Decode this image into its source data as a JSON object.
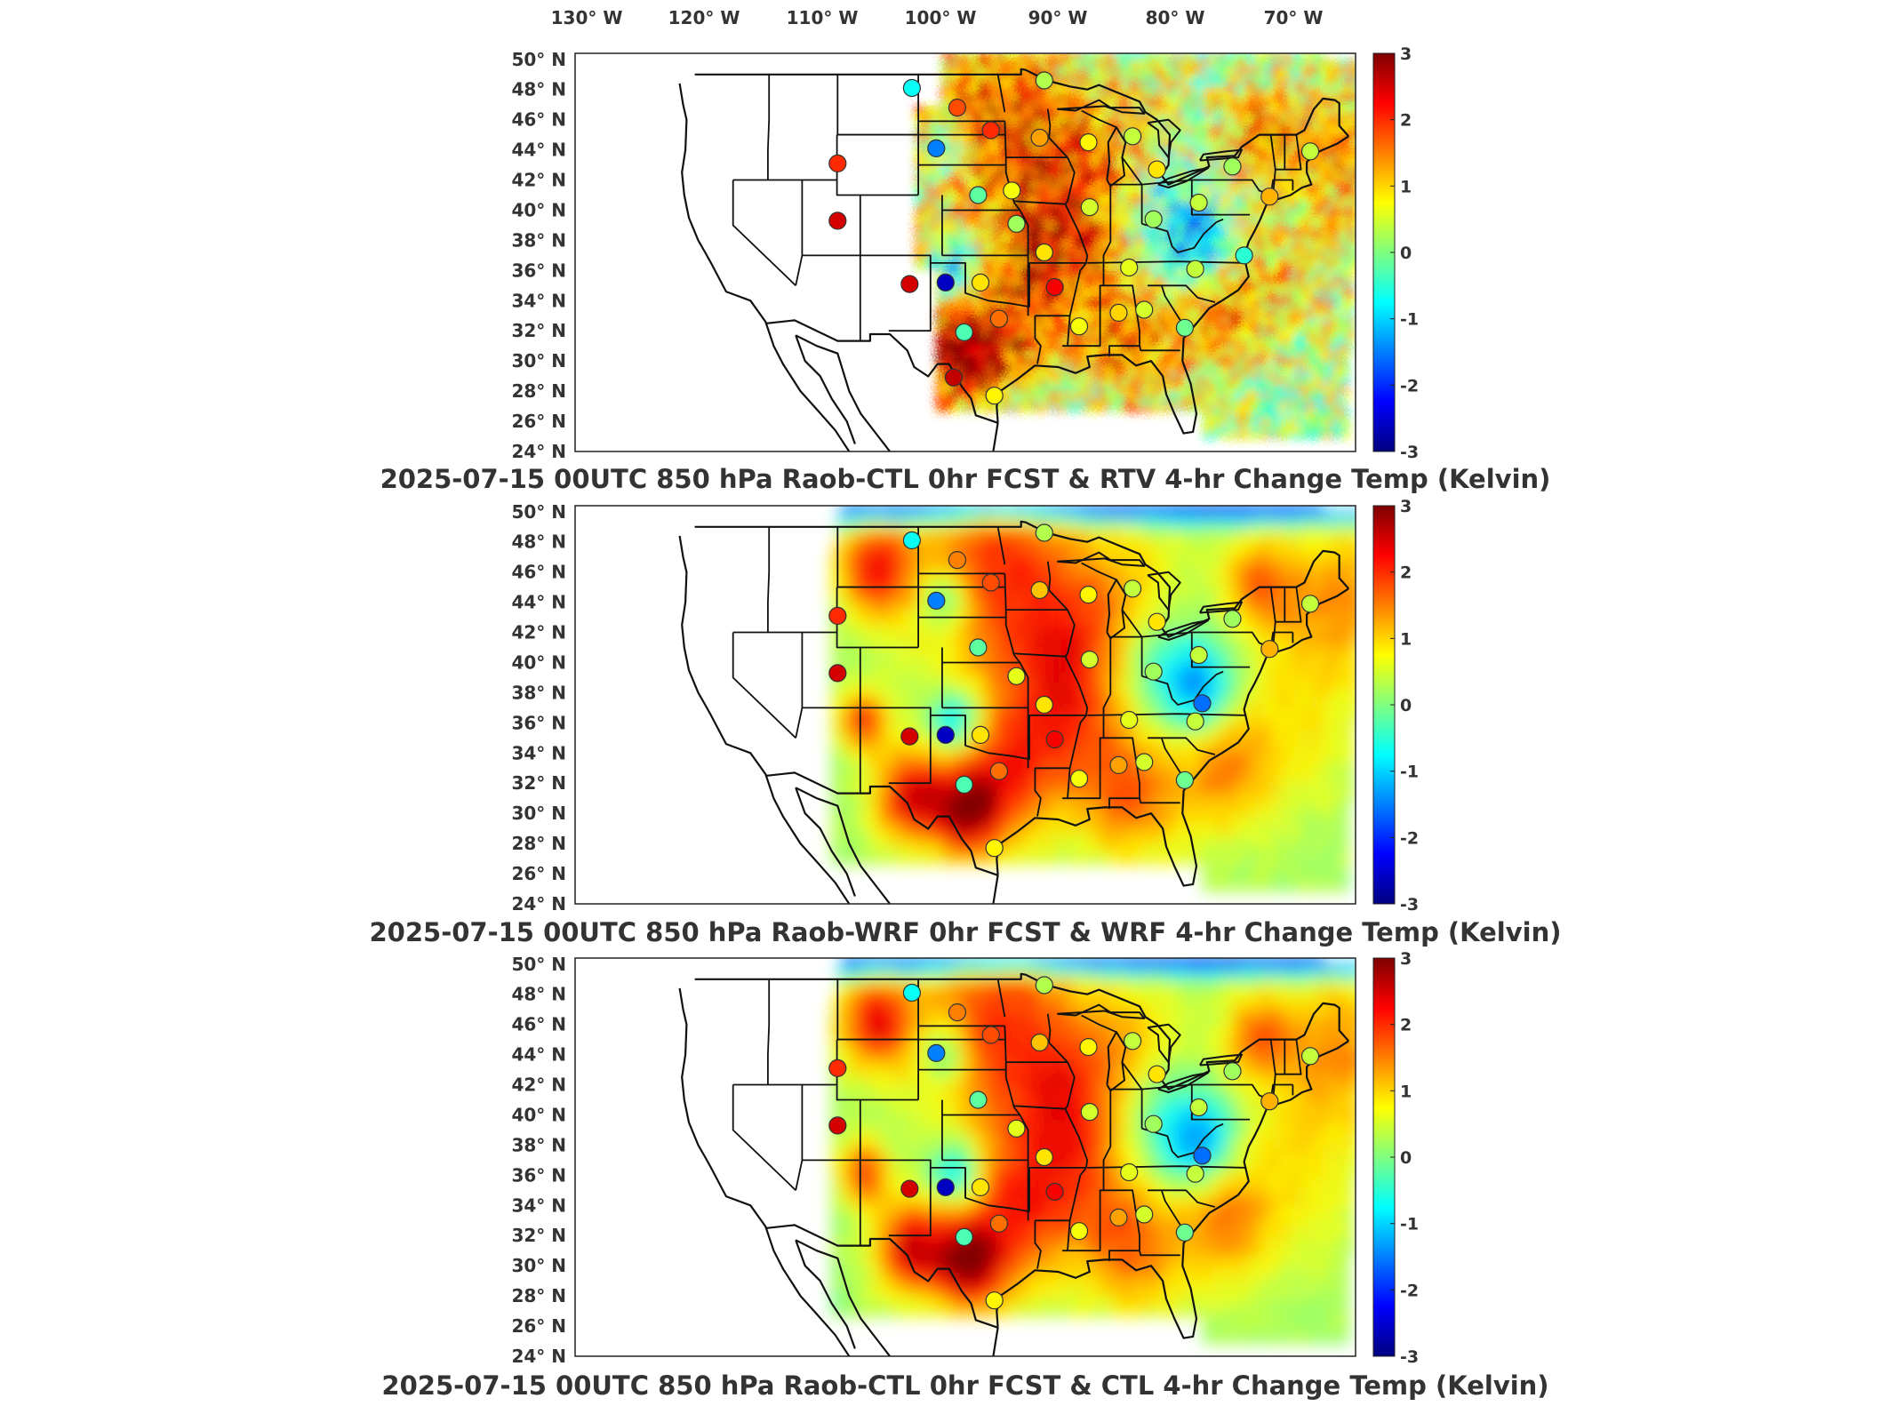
{
  "longitude_labels": [
    "130° W",
    "120° W",
    "110° W",
    "100° W",
    "90° W",
    "80° W",
    "70° W"
  ],
  "latitude_labels": [
    "50° N",
    "48° N",
    "46° N",
    "44° N",
    "42° N",
    "40° N",
    "38° N",
    "36° N",
    "34° N",
    "32° N",
    "30° N",
    "28° N",
    "26° N",
    "24° N"
  ],
  "colorbar": {
    "ticks": [
      "3",
      "2",
      "1",
      "0",
      "-1",
      "-2",
      "-3"
    ],
    "range": [
      -3,
      3
    ],
    "colors": [
      "#00007f",
      "#0000ff",
      "#007fff",
      "#00ffff",
      "#7fff7f",
      "#ffff00",
      "#ff7f00",
      "#ff0000",
      "#7f0000"
    ]
  },
  "panels": [
    {
      "title": "2025-07-15 00UTC 850 hPa Raob-CTL 0hr FCST & RTV 4-hr Change Temp (Kelvin)",
      "field": "speckled",
      "stations": [
        {
          "lon": -104.6,
          "lat": 48.1,
          "val": -0.7
        },
        {
          "lon": -100.7,
          "lat": 46.8,
          "val": 1.8
        },
        {
          "lon": -97.8,
          "lat": 45.3,
          "val": 2.0
        },
        {
          "lon": -102.5,
          "lat": 44.1,
          "val": -1.5
        },
        {
          "lon": -111.0,
          "lat": 43.1,
          "val": 2.0
        },
        {
          "lon": -111.0,
          "lat": 39.3,
          "val": 2.5
        },
        {
          "lon": -104.8,
          "lat": 35.1,
          "val": 2.5
        },
        {
          "lon": -101.7,
          "lat": 35.2,
          "val": -2.6
        },
        {
          "lon": -98.7,
          "lat": 35.2,
          "val": 0.9
        },
        {
          "lon": -92.3,
          "lat": 34.9,
          "val": 2.3
        },
        {
          "lon": -100.1,
          "lat": 31.9,
          "val": -0.3
        },
        {
          "lon": -97.1,
          "lat": 32.8,
          "val": 1.6
        },
        {
          "lon": -101.0,
          "lat": 28.9,
          "val": 2.6
        },
        {
          "lon": -97.5,
          "lat": 27.7,
          "val": 0.8
        },
        {
          "lon": -90.2,
          "lat": 32.3,
          "val": 0.7
        },
        {
          "lon": -86.8,
          "lat": 33.2,
          "val": 1.0
        },
        {
          "lon": -84.6,
          "lat": 33.4,
          "val": 0.5
        },
        {
          "lon": -81.1,
          "lat": 32.2,
          "val": -0.1
        },
        {
          "lon": -85.9,
          "lat": 36.2,
          "val": 0.6
        },
        {
          "lon": -80.2,
          "lat": 36.1,
          "val": 0.4
        },
        {
          "lon": -76.0,
          "lat": 37.0,
          "val": -0.5
        },
        {
          "lon": -83.8,
          "lat": 39.4,
          "val": 0.2
        },
        {
          "lon": -89.3,
          "lat": 40.2,
          "val": 0.5
        },
        {
          "lon": -93.2,
          "lat": 37.2,
          "val": 0.9
        },
        {
          "lon": -95.6,
          "lat": 39.1,
          "val": 0.2
        },
        {
          "lon": -98.9,
          "lat": 41.0,
          "val": -0.2
        },
        {
          "lon": -96.0,
          "lat": 41.3,
          "val": 0.7
        },
        {
          "lon": -93.6,
          "lat": 44.8,
          "val": 1.3
        },
        {
          "lon": -89.4,
          "lat": 44.5,
          "val": 0.8
        },
        {
          "lon": -85.6,
          "lat": 44.9,
          "val": 0.4
        },
        {
          "lon": -83.5,
          "lat": 42.7,
          "val": 0.9
        },
        {
          "lon": -79.9,
          "lat": 40.5,
          "val": 0.4
        },
        {
          "lon": -77.0,
          "lat": 42.9,
          "val": 0.2
        },
        {
          "lon": -73.8,
          "lat": 40.9,
          "val": 1.2
        },
        {
          "lon": -70.3,
          "lat": 43.9,
          "val": 0.4
        },
        {
          "lon": -93.2,
          "lat": 48.6,
          "val": 0.3
        }
      ]
    },
    {
      "title": "2025-07-15 00UTC 850 hPa Raob-WRF 0hr FCST & WRF 4-hr Change Temp (Kelvin)",
      "field": "smooth",
      "stations": [
        {
          "lon": -104.6,
          "lat": 48.1,
          "val": -0.7
        },
        {
          "lon": -100.7,
          "lat": 46.8,
          "val": 1.5
        },
        {
          "lon": -97.8,
          "lat": 45.3,
          "val": 1.8
        },
        {
          "lon": -102.5,
          "lat": 44.1,
          "val": -1.5
        },
        {
          "lon": -111.0,
          "lat": 43.1,
          "val": 2.0
        },
        {
          "lon": -111.0,
          "lat": 39.3,
          "val": 2.5
        },
        {
          "lon": -104.8,
          "lat": 35.1,
          "val": 2.5
        },
        {
          "lon": -101.7,
          "lat": 35.2,
          "val": -2.6
        },
        {
          "lon": -98.7,
          "lat": 35.2,
          "val": 0.9
        },
        {
          "lon": -92.3,
          "lat": 34.9,
          "val": 2.3
        },
        {
          "lon": -100.1,
          "lat": 31.9,
          "val": -0.3
        },
        {
          "lon": -97.1,
          "lat": 32.8,
          "val": 1.6
        },
        {
          "lon": -97.5,
          "lat": 27.7,
          "val": 0.8
        },
        {
          "lon": -90.2,
          "lat": 32.3,
          "val": 0.7
        },
        {
          "lon": -86.8,
          "lat": 33.2,
          "val": 1.3
        },
        {
          "lon": -84.6,
          "lat": 33.4,
          "val": 0.5
        },
        {
          "lon": -81.1,
          "lat": 32.2,
          "val": -0.1
        },
        {
          "lon": -85.9,
          "lat": 36.2,
          "val": 0.6
        },
        {
          "lon": -80.2,
          "lat": 36.1,
          "val": 0.4
        },
        {
          "lon": -79.6,
          "lat": 37.3,
          "val": -1.6
        },
        {
          "lon": -83.8,
          "lat": 39.4,
          "val": 0.2
        },
        {
          "lon": -89.3,
          "lat": 40.2,
          "val": 0.5
        },
        {
          "lon": -93.2,
          "lat": 37.2,
          "val": 0.9
        },
        {
          "lon": -95.6,
          "lat": 39.1,
          "val": 0.6
        },
        {
          "lon": -98.9,
          "lat": 41.0,
          "val": -0.2
        },
        {
          "lon": -93.6,
          "lat": 44.8,
          "val": 1.1
        },
        {
          "lon": -89.4,
          "lat": 44.5,
          "val": 0.8
        },
        {
          "lon": -85.6,
          "lat": 44.9,
          "val": 0.4
        },
        {
          "lon": -83.5,
          "lat": 42.7,
          "val": 0.9
        },
        {
          "lon": -79.9,
          "lat": 40.5,
          "val": 0.4
        },
        {
          "lon": -77.0,
          "lat": 42.9,
          "val": 0.2
        },
        {
          "lon": -73.8,
          "lat": 40.9,
          "val": 1.2
        },
        {
          "lon": -70.3,
          "lat": 43.9,
          "val": 0.4
        },
        {
          "lon": -93.2,
          "lat": 48.6,
          "val": 0.3
        }
      ]
    },
    {
      "title": "2025-07-15 00UTC 850 hPa Raob-CTL 0hr FCST & CTL 4-hr Change Temp (Kelvin)",
      "field": "smooth",
      "stations": [
        {
          "lon": -104.6,
          "lat": 48.1,
          "val": -0.7
        },
        {
          "lon": -100.7,
          "lat": 46.8,
          "val": 1.5
        },
        {
          "lon": -97.8,
          "lat": 45.3,
          "val": 1.8
        },
        {
          "lon": -102.5,
          "lat": 44.1,
          "val": -1.5
        },
        {
          "lon": -111.0,
          "lat": 43.1,
          "val": 2.0
        },
        {
          "lon": -111.0,
          "lat": 39.3,
          "val": 2.5
        },
        {
          "lon": -104.8,
          "lat": 35.1,
          "val": 2.5
        },
        {
          "lon": -101.7,
          "lat": 35.2,
          "val": -2.6
        },
        {
          "lon": -98.7,
          "lat": 35.2,
          "val": 0.9
        },
        {
          "lon": -92.3,
          "lat": 34.9,
          "val": 2.3
        },
        {
          "lon": -100.1,
          "lat": 31.9,
          "val": -0.3
        },
        {
          "lon": -97.1,
          "lat": 32.8,
          "val": 1.6
        },
        {
          "lon": -97.5,
          "lat": 27.7,
          "val": 0.8
        },
        {
          "lon": -90.2,
          "lat": 32.3,
          "val": 0.7
        },
        {
          "lon": -86.8,
          "lat": 33.2,
          "val": 1.3
        },
        {
          "lon": -84.6,
          "lat": 33.4,
          "val": 0.5
        },
        {
          "lon": -81.1,
          "lat": 32.2,
          "val": -0.1
        },
        {
          "lon": -85.9,
          "lat": 36.2,
          "val": 0.6
        },
        {
          "lon": -80.2,
          "lat": 36.1,
          "val": 0.4
        },
        {
          "lon": -79.6,
          "lat": 37.3,
          "val": -1.6
        },
        {
          "lon": -83.8,
          "lat": 39.4,
          "val": 0.2
        },
        {
          "lon": -89.3,
          "lat": 40.2,
          "val": 0.5
        },
        {
          "lon": -93.2,
          "lat": 37.2,
          "val": 0.9
        },
        {
          "lon": -95.6,
          "lat": 39.1,
          "val": 0.6
        },
        {
          "lon": -98.9,
          "lat": 41.0,
          "val": -0.2
        },
        {
          "lon": -93.6,
          "lat": 44.8,
          "val": 1.1
        },
        {
          "lon": -89.4,
          "lat": 44.5,
          "val": 0.8
        },
        {
          "lon": -85.6,
          "lat": 44.9,
          "val": 0.4
        },
        {
          "lon": -83.5,
          "lat": 42.7,
          "val": 0.9
        },
        {
          "lon": -79.9,
          "lat": 40.5,
          "val": 0.4
        },
        {
          "lon": -77.0,
          "lat": 42.9,
          "val": 0.2
        },
        {
          "lon": -73.8,
          "lat": 40.9,
          "val": 1.2
        },
        {
          "lon": -70.3,
          "lat": 43.9,
          "val": 0.4
        },
        {
          "lon": -93.2,
          "lat": 48.6,
          "val": 0.3
        }
      ]
    }
  ]
}
